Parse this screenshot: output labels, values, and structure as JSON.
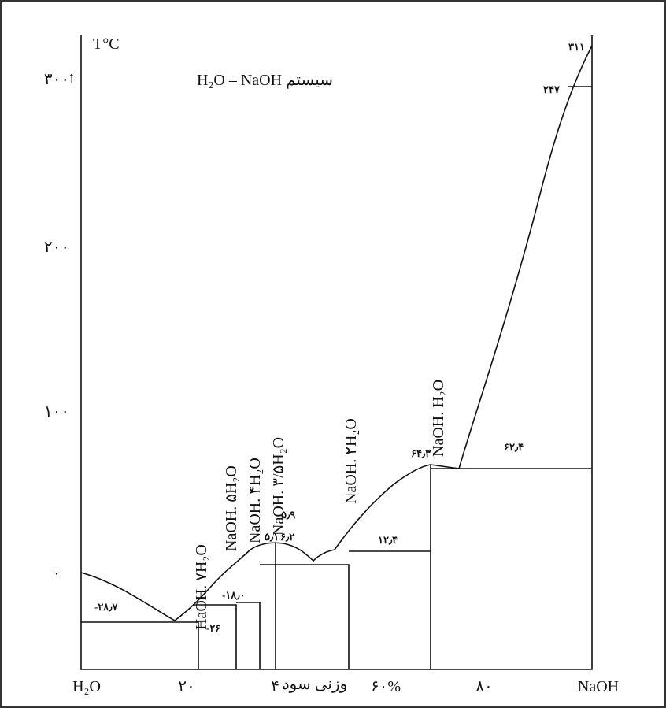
{
  "title": "H₂O – NaOH سیستم",
  "y_axis": {
    "label": "T°C",
    "arrow": "↑",
    "ticks": [
      "۳۰۰",
      "۲۰۰",
      "۱۰۰",
      "۰"
    ]
  },
  "x_axis": {
    "ticks": [
      "H₂O",
      "۲۰",
      "۴۰",
      "۶۰%",
      "۸۰",
      "NaOH"
    ],
    "label": "وزنی سود"
  },
  "phases": [
    "HaOH. ۷H₂O",
    "NaOH. ۵H₂O",
    "NaOH. ۴H₂O",
    "NaOH. ۳/۵H₂O",
    "NaOH. ۲H₂O",
    "NaOH. H₂O"
  ],
  "points": [
    "-۲۸٫۷",
    "-۲۶",
    "-۱۸٫۰",
    "۵٫۱",
    "۶٫۲",
    "۵٫۹",
    "۱۲٫۴",
    "۶۴٫۳",
    "۶۲٫۴",
    "۳۱۱",
    "۲۴۷"
  ]
}
